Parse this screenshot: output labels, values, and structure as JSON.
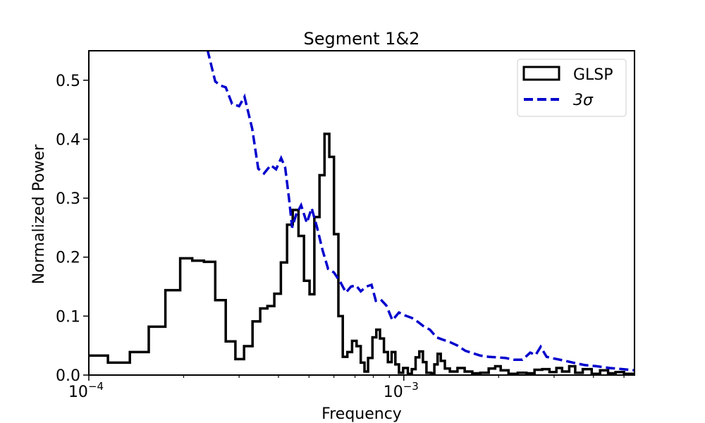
{
  "chart_data": {
    "type": "line",
    "title": "Segment 1&2",
    "xlabel": "Frequency",
    "ylabel": "Normalized Power",
    "xscale": "log",
    "xlim": [
      0.0001,
      0.0054
    ],
    "ylim": [
      0.0,
      0.55
    ],
    "grid": false,
    "legend_position": "top-right",
    "x_ticks": [
      {
        "value": 0.0001,
        "base": "10",
        "exp": "−4"
      },
      {
        "value": 0.001,
        "base": "10",
        "exp": "−3"
      }
    ],
    "y_ticks": [
      "0.0",
      "0.1",
      "0.2",
      "0.3",
      "0.4",
      "0.5"
    ],
    "series": [
      {
        "name": "GLSP",
        "style": "step",
        "color": "#000000",
        "points": [
          [
            0.0001,
            0.033
          ],
          [
            0.000115,
            0.021
          ],
          [
            0.000135,
            0.039
          ],
          [
            0.000155,
            0.082
          ],
          [
            0.000175,
            0.144
          ],
          [
            0.000195,
            0.198
          ],
          [
            0.000213,
            0.194
          ],
          [
            0.000232,
            0.192
          ],
          [
            0.000252,
            0.127
          ],
          [
            0.000272,
            0.057
          ],
          [
            0.000292,
            0.027
          ],
          [
            0.000311,
            0.049
          ],
          [
            0.000331,
            0.091
          ],
          [
            0.00035,
            0.113
          ],
          [
            0.000369,
            0.117
          ],
          [
            0.000388,
            0.138
          ],
          [
            0.000407,
            0.191
          ],
          [
            0.000426,
            0.255
          ],
          [
            0.000444,
            0.28
          ],
          [
            0.000463,
            0.236
          ],
          [
            0.000482,
            0.16
          ],
          [
            0.000502,
            0.137
          ],
          [
            0.00052,
            0.268
          ],
          [
            0.00054,
            0.339
          ],
          [
            0.00056,
            0.409
          ],
          [
            0.00058,
            0.37
          ],
          [
            0.0006,
            0.239
          ],
          [
            0.00062,
            0.1
          ],
          [
            0.00064,
            0.031
          ],
          [
            0.000662,
            0.039
          ],
          [
            0.000685,
            0.058
          ],
          [
            0.000708,
            0.049
          ],
          [
            0.00073,
            0.021
          ],
          [
            0.00075,
            0.006
          ],
          [
            0.00077,
            0.029
          ],
          [
            0.000795,
            0.064
          ],
          [
            0.000818,
            0.077
          ],
          [
            0.00084,
            0.062
          ],
          [
            0.000865,
            0.039
          ],
          [
            0.00089,
            0.022
          ],
          [
            0.000915,
            0.039
          ],
          [
            0.00094,
            0.018
          ],
          [
            0.000965,
            0.004
          ],
          [
            0.000995,
            0.012
          ],
          [
            0.00103,
            0.002
          ],
          [
            0.00106,
            0.01
          ],
          [
            0.00109,
            0.03
          ],
          [
            0.00112,
            0.04
          ],
          [
            0.00115,
            0.022
          ],
          [
            0.00118,
            0.004
          ],
          [
            0.00122,
            0.003
          ],
          [
            0.00125,
            0.018
          ],
          [
            0.00128,
            0.036
          ],
          [
            0.00131,
            0.024
          ],
          [
            0.00135,
            0.011
          ],
          [
            0.0014,
            0.006
          ],
          [
            0.00148,
            0.012
          ],
          [
            0.00156,
            0.006
          ],
          [
            0.00165,
            0.003
          ],
          [
            0.00175,
            0.004
          ],
          [
            0.00186,
            0.011
          ],
          [
            0.00195,
            0.015
          ],
          [
            0.00203,
            0.008
          ],
          [
            0.00215,
            0.002
          ],
          [
            0.0023,
            0.004
          ],
          [
            0.00245,
            0.003
          ],
          [
            0.0026,
            0.009
          ],
          [
            0.00275,
            0.01
          ],
          [
            0.0029,
            0.005
          ],
          [
            0.00305,
            0.012
          ],
          [
            0.00318,
            0.006
          ],
          [
            0.00335,
            0.015
          ],
          [
            0.0035,
            0.004
          ],
          [
            0.0037,
            0.01
          ],
          [
            0.00395,
            0.002
          ],
          [
            0.0042,
            0.008
          ],
          [
            0.00445,
            0.003
          ],
          [
            0.0047,
            0.005
          ],
          [
            0.005,
            0.002
          ],
          [
            0.0054,
            0.002
          ]
        ]
      },
      {
        "name": "3σ",
        "style": "dashed",
        "color": "#0000cc",
        "points": [
          [
            0.000238,
            0.552
          ],
          [
            0.000252,
            0.498
          ],
          [
            0.000262,
            0.491
          ],
          [
            0.000272,
            0.488
          ],
          [
            0.000285,
            0.46
          ],
          [
            0.0003,
            0.456
          ],
          [
            0.000312,
            0.472
          ],
          [
            0.00033,
            0.418
          ],
          [
            0.000345,
            0.35
          ],
          [
            0.00036,
            0.342
          ],
          [
            0.000378,
            0.356
          ],
          [
            0.000393,
            0.349
          ],
          [
            0.000408,
            0.368
          ],
          [
            0.00042,
            0.352
          ],
          [
            0.000432,
            0.3
          ],
          [
            0.000442,
            0.25
          ],
          [
            0.000455,
            0.272
          ],
          [
            0.000472,
            0.288
          ],
          [
            0.000492,
            0.258
          ],
          [
            0.00051,
            0.283
          ],
          [
            0.00053,
            0.251
          ],
          [
            0.000552,
            0.212
          ],
          [
            0.000575,
            0.18
          ],
          [
            0.0006,
            0.174
          ],
          [
            0.00063,
            0.157
          ],
          [
            0.000655,
            0.14
          ],
          [
            0.00068,
            0.15
          ],
          [
            0.000705,
            0.152
          ],
          [
            0.00073,
            0.142
          ],
          [
            0.00076,
            0.15
          ],
          [
            0.00079,
            0.153
          ],
          [
            0.000815,
            0.126
          ],
          [
            0.000845,
            0.128
          ],
          [
            0.00088,
            0.118
          ],
          [
            0.00092,
            0.093
          ],
          [
            0.000965,
            0.106
          ],
          [
            0.00101,
            0.101
          ],
          [
            0.00106,
            0.097
          ],
          [
            0.00111,
            0.09
          ],
          [
            0.00116,
            0.082
          ],
          [
            0.00121,
            0.077
          ],
          [
            0.00127,
            0.064
          ],
          [
            0.00133,
            0.06
          ],
          [
            0.0014,
            0.056
          ],
          [
            0.00148,
            0.05
          ],
          [
            0.00157,
            0.041
          ],
          [
            0.00166,
            0.037
          ],
          [
            0.00175,
            0.033
          ],
          [
            0.00186,
            0.031
          ],
          [
            0.00198,
            0.03
          ],
          [
            0.0021,
            0.029
          ],
          [
            0.00224,
            0.026
          ],
          [
            0.00238,
            0.026
          ],
          [
            0.00252,
            0.038
          ],
          [
            0.00262,
            0.034
          ],
          [
            0.00272,
            0.048
          ],
          [
            0.00284,
            0.031
          ],
          [
            0.003,
            0.028
          ],
          [
            0.0032,
            0.025
          ],
          [
            0.00345,
            0.021
          ],
          [
            0.00375,
            0.017
          ],
          [
            0.0041,
            0.015
          ],
          [
            0.0045,
            0.012
          ],
          [
            0.00495,
            0.01
          ],
          [
            0.0054,
            0.008
          ]
        ]
      }
    ]
  }
}
